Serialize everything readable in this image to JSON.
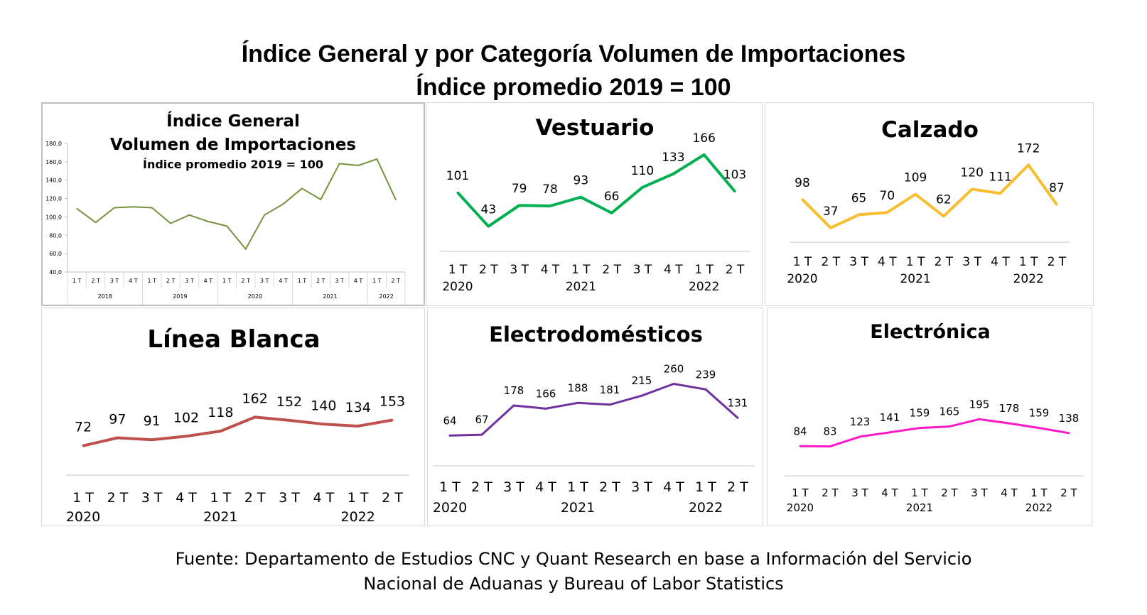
{
  "header": {
    "title": "Índice General y por Categoría Volumen de Importaciones",
    "subtitle": "Índice promedio 2019 = 100"
  },
  "footer": {
    "line1": "Fuente: Departamento de Estudios CNC y Quant Research en base a Información del Servicio",
    "line2": "Nacional de Aduanas y Bureau of Labor Statistics"
  },
  "chart_data": [
    {
      "id": "general",
      "type": "line",
      "title": "Índice General",
      "title2": "Volumen de Importaciones",
      "subtitle": "Índice promedio 2019 = 100",
      "color": "#76923c",
      "categories": [
        "1 T",
        "2 T",
        "3 T",
        "4 T",
        "1 T",
        "2 T",
        "3 T",
        "4 T",
        "1 T",
        "2 T",
        "3 T",
        "4 T",
        "1 T",
        "2 T",
        "3 T",
        "4 T",
        "1 T",
        "2 T"
      ],
      "year_groups": [
        {
          "label": "2018",
          "count": 4
        },
        {
          "label": "2019",
          "count": 4
        },
        {
          "label": "2020",
          "count": 4
        },
        {
          "label": "2021",
          "count": 4
        },
        {
          "label": "2022",
          "count": 2
        }
      ],
      "values": [
        109,
        94,
        110,
        111,
        110,
        93,
        102,
        95,
        90,
        65,
        102,
        114,
        131,
        119,
        158,
        156,
        163,
        119
      ],
      "ylim": [
        40,
        180
      ],
      "yticks": [
        "40,0",
        "60,0",
        "80,0",
        "100,0",
        "120,0",
        "140,0",
        "160,0",
        "180,0"
      ],
      "grid": false
    },
    {
      "id": "vestuario",
      "type": "line",
      "title": "Vestuario",
      "color": "#00b050",
      "categories": [
        "1 T",
        "2 T",
        "3 T",
        "4 T",
        "1 T",
        "2 T",
        "3 T",
        "4 T",
        "1 T",
        "2 T"
      ],
      "years": [
        "2020",
        "",
        "",
        "",
        "2021",
        "",
        "",
        "",
        "2022",
        ""
      ],
      "values": [
        101,
        43,
        79,
        78,
        93,
        66,
        110,
        133,
        166,
        103
      ],
      "data_labels": [
        "101",
        "43",
        "79",
        "78",
        "93",
        "66",
        "110",
        "133",
        "166",
        "103"
      ]
    },
    {
      "id": "calzado",
      "type": "line",
      "title": "Calzado",
      "color": "#f9be2f",
      "categories": [
        "1 T",
        "2 T",
        "3 T",
        "4 T",
        "1 T",
        "2 T",
        "3 T",
        "4 T",
        "1 T",
        "2 T"
      ],
      "years": [
        "2020",
        "",
        "",
        "",
        "2021",
        "",
        "",
        "",
        "2022",
        ""
      ],
      "values": [
        98,
        37,
        65,
        70,
        109,
        62,
        120,
        111,
        172,
        87
      ],
      "data_labels": [
        "98",
        "37",
        "65",
        "70",
        "109",
        "62",
        "120",
        "111",
        "172",
        "87"
      ]
    },
    {
      "id": "linea_blanca",
      "type": "line",
      "title": "Línea Blanca",
      "color": "#c0504d",
      "categories": [
        "1 T",
        "2 T",
        "3 T",
        "4 T",
        "1 T",
        "2 T",
        "3 T",
        "4 T",
        "1 T",
        "2 T"
      ],
      "years": [
        "2020",
        "",
        "",
        "",
        "2021",
        "",
        "",
        "",
        "2022",
        ""
      ],
      "values": [
        72,
        97,
        91,
        102,
        118,
        162,
        152,
        140,
        134,
        153
      ],
      "data_labels": [
        "72",
        "97",
        "91",
        "102",
        "118",
        "162",
        "152",
        "140",
        "134",
        "153"
      ]
    },
    {
      "id": "electrodomesticos",
      "type": "line",
      "title": "Electrodomésticos",
      "color": "#7030a0",
      "categories": [
        "1 T",
        "2 T",
        "3 T",
        "4 T",
        "1 T",
        "2 T",
        "3 T",
        "4 T",
        "1 T",
        "2 T"
      ],
      "years": [
        "2020",
        "",
        "",
        "",
        "2021",
        "",
        "",
        "",
        "2022",
        ""
      ],
      "values": [
        64,
        67,
        178,
        166,
        188,
        181,
        215,
        260,
        239,
        131
      ],
      "data_labels": [
        "64",
        "67",
        "178",
        "166",
        "188",
        "181",
        "215",
        "260",
        "239",
        "131"
      ]
    },
    {
      "id": "electronica",
      "type": "line",
      "title": "Electrónica",
      "color": "#ff19c6",
      "categories": [
        "1 T",
        "2 T",
        "3 T",
        "4 T",
        "1 T",
        "2 T",
        "3 T",
        "4 T",
        "1 T",
        "2 T"
      ],
      "years": [
        "2020",
        "",
        "",
        "",
        "2021",
        "",
        "",
        "",
        "2022",
        ""
      ],
      "values": [
        84,
        83,
        123,
        141,
        159,
        165,
        195,
        178,
        159,
        138
      ],
      "data_labels": [
        "84",
        "83",
        "123",
        "141",
        "159",
        "165",
        "195",
        "178",
        "159",
        "138"
      ]
    }
  ]
}
